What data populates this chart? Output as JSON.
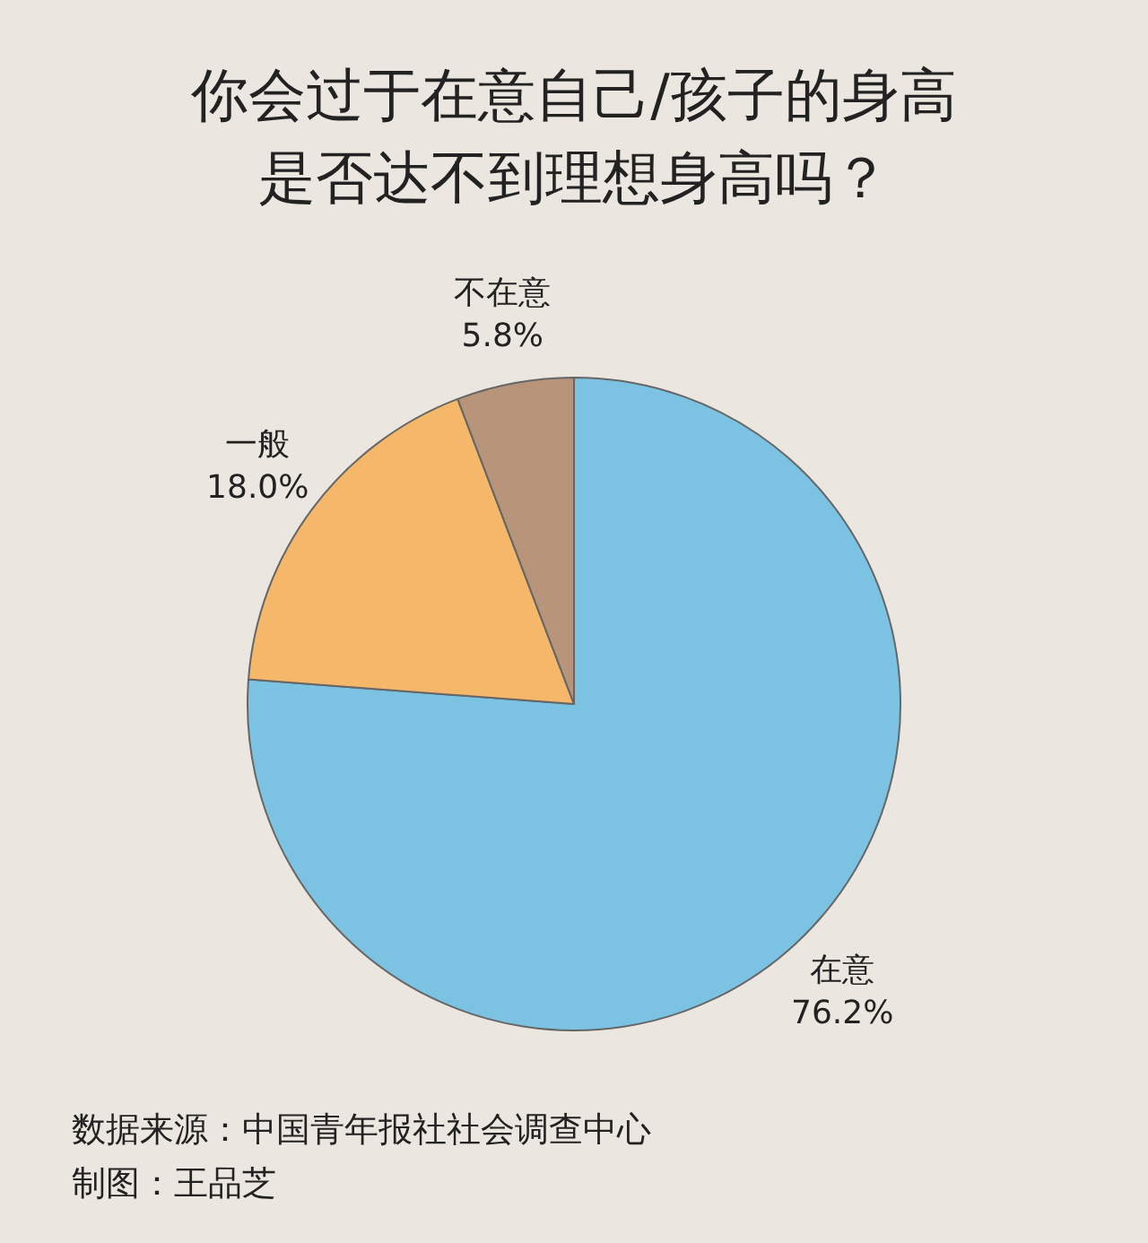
{
  "chart_data": {
    "type": "pie",
    "title": "你会过于在意自己/孩子的身高是否达不到理想身高吗？",
    "categories": [
      "在意",
      "一般",
      "不在意"
    ],
    "values": [
      76.2,
      18.0,
      5.8
    ],
    "colors": [
      "#7cc3e3",
      "#f5b86a",
      "#b8957a"
    ],
    "value_labels": [
      "76.2%",
      "18.0%",
      "5.8%"
    ],
    "legend": false,
    "annotations": [
      "数据来源：中国青年报社社会调查中心",
      "制图：王品芝"
    ]
  }
}
